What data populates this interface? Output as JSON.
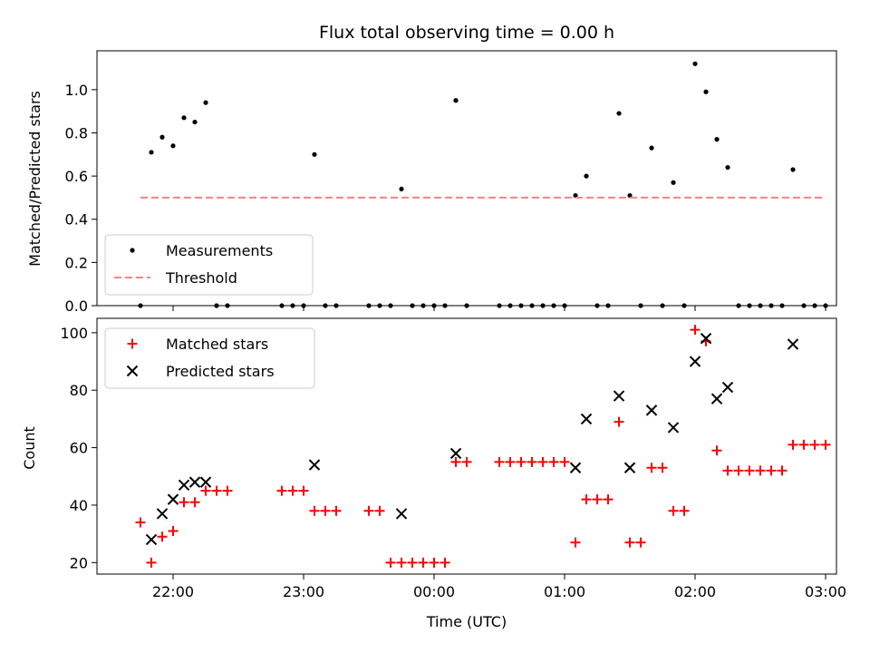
{
  "colors": {
    "matched": "#ff0000",
    "predicted": "#000000",
    "measurement": "#000000",
    "threshold": "#ff8080"
  },
  "chart_data": [
    {
      "type": "scatter",
      "title": "Flux total observing time = 0.00 h",
      "xlabel": "",
      "ylabel": "Matched/Predicted stars",
      "xlim": [
        "21:25",
        "03:05"
      ],
      "ylim": [
        0,
        1.18
      ],
      "yticks": [
        "0.0",
        "0.2",
        "0.4",
        "0.6",
        "0.8",
        "1.0"
      ],
      "legend": [
        "Measurements",
        "Threshold"
      ],
      "legend_position": "lower left",
      "series": [
        {
          "name": "Measurements",
          "marker": "dot",
          "points": [
            [
              "21:45",
              0.0
            ],
            [
              "21:50",
              0.71
            ],
            [
              "21:55",
              0.78
            ],
            [
              "22:00",
              0.74
            ],
            [
              "22:05",
              0.87
            ],
            [
              "22:10",
              0.85
            ],
            [
              "22:15",
              0.94
            ],
            [
              "22:20",
              0.0
            ],
            [
              "22:25",
              0.0
            ],
            [
              "22:50",
              0.0
            ],
            [
              "22:55",
              0.0
            ],
            [
              "23:00",
              0.0
            ],
            [
              "23:05",
              0.7
            ],
            [
              "23:10",
              0.0
            ],
            [
              "23:15",
              0.0
            ],
            [
              "23:30",
              0.0
            ],
            [
              "23:35",
              0.0
            ],
            [
              "23:40",
              0.0
            ],
            [
              "23:45",
              0.54
            ],
            [
              "23:50",
              0.0
            ],
            [
              "23:55",
              0.0
            ],
            [
              "00:00",
              0.0
            ],
            [
              "00:05",
              0.0
            ],
            [
              "00:10",
              0.95
            ],
            [
              "00:15",
              0.0
            ],
            [
              "00:30",
              0.0
            ],
            [
              "00:35",
              0.0
            ],
            [
              "00:40",
              0.0
            ],
            [
              "00:45",
              0.0
            ],
            [
              "00:50",
              0.0
            ],
            [
              "00:55",
              0.0
            ],
            [
              "01:00",
              0.0
            ],
            [
              "01:05",
              0.51
            ],
            [
              "01:10",
              0.6
            ],
            [
              "01:15",
              0.0
            ],
            [
              "01:20",
              0.0
            ],
            [
              "01:25",
              0.89
            ],
            [
              "01:30",
              0.51
            ],
            [
              "01:35",
              0.0
            ],
            [
              "01:40",
              0.73
            ],
            [
              "01:45",
              0.0
            ],
            [
              "01:50",
              0.57
            ],
            [
              "01:55",
              0.0
            ],
            [
              "02:00",
              1.12
            ],
            [
              "02:05",
              0.99
            ],
            [
              "02:10",
              0.77
            ],
            [
              "02:15",
              0.64
            ],
            [
              "02:20",
              0.0
            ],
            [
              "02:25",
              0.0
            ],
            [
              "02:30",
              0.0
            ],
            [
              "02:35",
              0.0
            ],
            [
              "02:40",
              0.0
            ],
            [
              "02:45",
              0.63
            ],
            [
              "02:50",
              0.0
            ],
            [
              "02:55",
              0.0
            ],
            [
              "03:00",
              0.0
            ]
          ]
        },
        {
          "name": "Threshold",
          "style": "dashed",
          "points": [
            [
              "21:45",
              0.5
            ],
            [
              "03:00",
              0.5
            ]
          ]
        }
      ]
    },
    {
      "type": "scatter",
      "title": "",
      "xlabel": "Time (UTC)",
      "ylabel": "Count",
      "xlim": [
        "21:25",
        "03:05"
      ],
      "ylim": [
        16,
        105
      ],
      "xticks": [
        "22:00",
        "23:00",
        "00:00",
        "01:00",
        "02:00",
        "03:00"
      ],
      "yticks": [
        "20",
        "40",
        "60",
        "80",
        "100"
      ],
      "legend": [
        "Matched stars",
        "Predicted stars"
      ],
      "legend_position": "upper left",
      "series": [
        {
          "name": "Matched stars",
          "marker": "plus",
          "points": [
            [
              "21:45",
              34
            ],
            [
              "21:50",
              20
            ],
            [
              "21:55",
              29
            ],
            [
              "22:00",
              31
            ],
            [
              "22:05",
              41
            ],
            [
              "22:10",
              41
            ],
            [
              "22:15",
              45
            ],
            [
              "22:20",
              45
            ],
            [
              "22:25",
              45
            ],
            [
              "22:50",
              45
            ],
            [
              "22:55",
              45
            ],
            [
              "23:00",
              45
            ],
            [
              "23:05",
              38
            ],
            [
              "23:10",
              38
            ],
            [
              "23:15",
              38
            ],
            [
              "23:30",
              38
            ],
            [
              "23:35",
              38
            ],
            [
              "23:40",
              20
            ],
            [
              "23:45",
              20
            ],
            [
              "23:50",
              20
            ],
            [
              "23:55",
              20
            ],
            [
              "00:00",
              20
            ],
            [
              "00:05",
              20
            ],
            [
              "00:10",
              55
            ],
            [
              "00:15",
              55
            ],
            [
              "00:30",
              55
            ],
            [
              "00:35",
              55
            ],
            [
              "00:40",
              55
            ],
            [
              "00:45",
              55
            ],
            [
              "00:50",
              55
            ],
            [
              "00:55",
              55
            ],
            [
              "01:00",
              55
            ],
            [
              "01:05",
              27
            ],
            [
              "01:10",
              42
            ],
            [
              "01:15",
              42
            ],
            [
              "01:20",
              42
            ],
            [
              "01:25",
              69
            ],
            [
              "01:30",
              27
            ],
            [
              "01:35",
              27
            ],
            [
              "01:40",
              53
            ],
            [
              "01:45",
              53
            ],
            [
              "01:50",
              38
            ],
            [
              "01:55",
              38
            ],
            [
              "02:00",
              101
            ],
            [
              "02:05",
              97
            ],
            [
              "02:10",
              59
            ],
            [
              "02:15",
              52
            ],
            [
              "02:20",
              52
            ],
            [
              "02:25",
              52
            ],
            [
              "02:30",
              52
            ],
            [
              "02:35",
              52
            ],
            [
              "02:40",
              52
            ],
            [
              "02:45",
              61
            ],
            [
              "02:50",
              61
            ],
            [
              "02:55",
              61
            ],
            [
              "03:00",
              61
            ]
          ]
        },
        {
          "name": "Predicted stars",
          "marker": "x",
          "points": [
            [
              "21:50",
              28
            ],
            [
              "21:55",
              37
            ],
            [
              "22:00",
              42
            ],
            [
              "22:05",
              47
            ],
            [
              "22:10",
              48
            ],
            [
              "22:15",
              48
            ],
            [
              "23:05",
              54
            ],
            [
              "23:45",
              37
            ],
            [
              "00:10",
              58
            ],
            [
              "01:05",
              53
            ],
            [
              "01:10",
              70
            ],
            [
              "01:25",
              78
            ],
            [
              "01:30",
              53
            ],
            [
              "01:40",
              73
            ],
            [
              "01:50",
              67
            ],
            [
              "02:00",
              90
            ],
            [
              "02:05",
              98
            ],
            [
              "02:10",
              77
            ],
            [
              "02:15",
              81
            ],
            [
              "02:45",
              96
            ]
          ]
        }
      ]
    }
  ]
}
